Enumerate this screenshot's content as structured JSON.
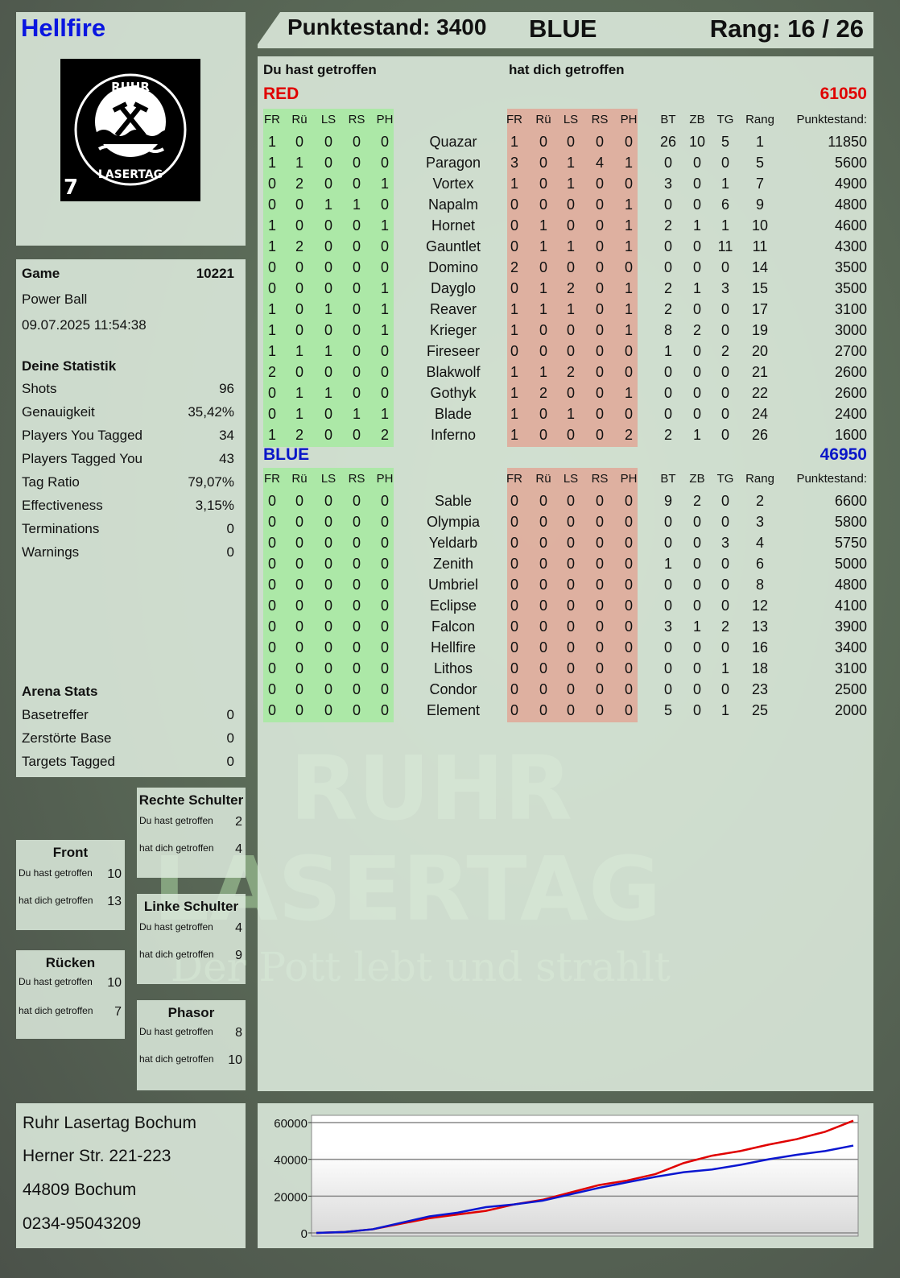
{
  "player_name": "Hellfire",
  "logo": {
    "text": "RUHR LASERTAG",
    "badge": "7"
  },
  "header": {
    "score_label": "Punktestand: 3400",
    "team": "BLUE",
    "rank_label": "Rang: 16 / 26"
  },
  "columns": {
    "you_hit": "Du hast getroffen",
    "hit_you": "hat dich getroffen",
    "hit_cols": [
      "FR",
      "Rü",
      "LS",
      "RS",
      "PH"
    ],
    "stat_cols": [
      "BT",
      "ZB",
      "TG",
      "Rang"
    ],
    "score_col": "Punktestand:"
  },
  "teams": [
    {
      "name": "RED",
      "score": "61050",
      "color": "#e00000",
      "rows": [
        [
          "Quazar",
          [
            1,
            0,
            0,
            0,
            0
          ],
          [
            1,
            0,
            0,
            0,
            0
          ],
          [
            26,
            10,
            5,
            1
          ],
          11850
        ],
        [
          "Paragon",
          [
            1,
            1,
            0,
            0,
            0
          ],
          [
            3,
            0,
            1,
            4,
            1
          ],
          [
            0,
            0,
            0,
            5
          ],
          5600
        ],
        [
          "Vortex",
          [
            0,
            2,
            0,
            0,
            1
          ],
          [
            1,
            0,
            1,
            0,
            0
          ],
          [
            3,
            0,
            1,
            7
          ],
          4900
        ],
        [
          "Napalm",
          [
            0,
            0,
            1,
            1,
            0
          ],
          [
            0,
            0,
            0,
            0,
            1
          ],
          [
            0,
            0,
            6,
            9
          ],
          4800
        ],
        [
          "Hornet",
          [
            1,
            0,
            0,
            0,
            1
          ],
          [
            0,
            1,
            0,
            0,
            1
          ],
          [
            2,
            1,
            1,
            10
          ],
          4600
        ],
        [
          "Gauntlet",
          [
            1,
            2,
            0,
            0,
            0
          ],
          [
            0,
            1,
            1,
            0,
            1
          ],
          [
            0,
            0,
            11,
            11
          ],
          4300
        ],
        [
          "Domino",
          [
            0,
            0,
            0,
            0,
            0
          ],
          [
            2,
            0,
            0,
            0,
            0
          ],
          [
            0,
            0,
            0,
            14
          ],
          3500
        ],
        [
          "Dayglo",
          [
            0,
            0,
            0,
            0,
            1
          ],
          [
            0,
            1,
            2,
            0,
            1
          ],
          [
            2,
            1,
            3,
            15
          ],
          3500
        ],
        [
          "Reaver",
          [
            1,
            0,
            1,
            0,
            1
          ],
          [
            1,
            1,
            1,
            0,
            1
          ],
          [
            2,
            0,
            0,
            17
          ],
          3100
        ],
        [
          "Krieger",
          [
            1,
            0,
            0,
            0,
            1
          ],
          [
            1,
            0,
            0,
            0,
            1
          ],
          [
            8,
            2,
            0,
            19
          ],
          3000
        ],
        [
          "Fireseer",
          [
            1,
            1,
            1,
            0,
            0
          ],
          [
            0,
            0,
            0,
            0,
            0
          ],
          [
            1,
            0,
            2,
            20
          ],
          2700
        ],
        [
          "Blakwolf",
          [
            2,
            0,
            0,
            0,
            0
          ],
          [
            1,
            1,
            2,
            0,
            0
          ],
          [
            0,
            0,
            0,
            21
          ],
          2600
        ],
        [
          "Gothyk",
          [
            0,
            1,
            1,
            0,
            0
          ],
          [
            1,
            2,
            0,
            0,
            1
          ],
          [
            0,
            0,
            0,
            22
          ],
          2600
        ],
        [
          "Blade",
          [
            0,
            1,
            0,
            1,
            1
          ],
          [
            1,
            0,
            1,
            0,
            0
          ],
          [
            0,
            0,
            0,
            24
          ],
          2400
        ],
        [
          "Inferno",
          [
            1,
            2,
            0,
            0,
            2
          ],
          [
            1,
            0,
            0,
            0,
            2
          ],
          [
            2,
            1,
            0,
            26
          ],
          1600
        ]
      ]
    },
    {
      "name": "BLUE",
      "score": "46950",
      "color": "#0a16c8",
      "rows": [
        [
          "Sable",
          [
            0,
            0,
            0,
            0,
            0
          ],
          [
            0,
            0,
            0,
            0,
            0
          ],
          [
            9,
            2,
            0,
            2
          ],
          6600
        ],
        [
          "Olympia",
          [
            0,
            0,
            0,
            0,
            0
          ],
          [
            0,
            0,
            0,
            0,
            0
          ],
          [
            0,
            0,
            0,
            3
          ],
          5800
        ],
        [
          "Yeldarb",
          [
            0,
            0,
            0,
            0,
            0
          ],
          [
            0,
            0,
            0,
            0,
            0
          ],
          [
            0,
            0,
            3,
            4
          ],
          5750
        ],
        [
          "Zenith",
          [
            0,
            0,
            0,
            0,
            0
          ],
          [
            0,
            0,
            0,
            0,
            0
          ],
          [
            1,
            0,
            0,
            6
          ],
          5000
        ],
        [
          "Umbriel",
          [
            0,
            0,
            0,
            0,
            0
          ],
          [
            0,
            0,
            0,
            0,
            0
          ],
          [
            0,
            0,
            0,
            8
          ],
          4800
        ],
        [
          "Eclipse",
          [
            0,
            0,
            0,
            0,
            0
          ],
          [
            0,
            0,
            0,
            0,
            0
          ],
          [
            0,
            0,
            0,
            12
          ],
          4100
        ],
        [
          "Falcon",
          [
            0,
            0,
            0,
            0,
            0
          ],
          [
            0,
            0,
            0,
            0,
            0
          ],
          [
            3,
            1,
            2,
            13
          ],
          3900
        ],
        [
          "Hellfire",
          [
            0,
            0,
            0,
            0,
            0
          ],
          [
            0,
            0,
            0,
            0,
            0
          ],
          [
            0,
            0,
            0,
            16
          ],
          3400
        ],
        [
          "Lithos",
          [
            0,
            0,
            0,
            0,
            0
          ],
          [
            0,
            0,
            0,
            0,
            0
          ],
          [
            0,
            0,
            1,
            18
          ],
          3100
        ],
        [
          "Condor",
          [
            0,
            0,
            0,
            0,
            0
          ],
          [
            0,
            0,
            0,
            0,
            0
          ],
          [
            0,
            0,
            0,
            23
          ],
          2500
        ],
        [
          "Element",
          [
            0,
            0,
            0,
            0,
            0
          ],
          [
            0,
            0,
            0,
            0,
            0
          ],
          [
            5,
            0,
            1,
            25
          ],
          2000
        ]
      ]
    }
  ],
  "game": {
    "label": "Game",
    "id": "10221",
    "mode": "Power Ball",
    "datetime": "09.07.2025 11:54:38"
  },
  "stats": {
    "title": "Deine Statistik",
    "items": [
      {
        "label": "Shots",
        "value": "96"
      },
      {
        "label": "Genauigkeit",
        "value": "35,42%"
      },
      {
        "label": "Players You Tagged",
        "value": "34"
      },
      {
        "label": "Players Tagged You",
        "value": "43"
      },
      {
        "label": "Tag Ratio",
        "value": "79,07%"
      },
      {
        "label": "Effectiveness",
        "value": "3,15%"
      },
      {
        "label": "Terminations",
        "value": "0"
      },
      {
        "label": "Warnings",
        "value": "0"
      }
    ]
  },
  "arena": {
    "title": "Arena Stats",
    "items": [
      {
        "label": "Basetreffer",
        "value": "0"
      },
      {
        "label": "Zerstörte Base",
        "value": "0"
      },
      {
        "label": "Targets Tagged",
        "value": "0"
      }
    ]
  },
  "hitzones": {
    "you_label": "Du hast getroffen",
    "them_label": "hat dich getroffen",
    "front": {
      "title": "Front",
      "you": "10",
      "them": "13"
    },
    "back": {
      "title": "Rücken",
      "you": "10",
      "them": "7"
    },
    "right_shoulder": {
      "title": "Rechte Schulter",
      "you": "2",
      "them": "4"
    },
    "left_shoulder": {
      "title": "Linke Schulter",
      "you": "4",
      "them": "9"
    },
    "phasor": {
      "title": "Phasor",
      "you": "8",
      "them": "10"
    }
  },
  "address": {
    "name": "Ruhr Lasertag Bochum",
    "street": "Herner Str. 221-223",
    "city": "44809 Bochum",
    "phone": "0234-95043209"
  },
  "watermark": {
    "line1": "RUHR",
    "line2": "LASERTAG",
    "tagline": "Der Pott lebt und strahlt"
  },
  "colors": {
    "you_hit_bg": "#a6eaa0",
    "hit_you_bg": "#e0a898"
  },
  "chart_data": {
    "type": "line",
    "ylim": [
      0,
      62000
    ],
    "yticks": [
      0,
      20000,
      40000,
      60000
    ],
    "grid": true,
    "series": [
      {
        "color": "#e00000",
        "values": [
          0,
          500,
          2000,
          5000,
          8000,
          10000,
          12000,
          15500,
          18000,
          22000,
          26000,
          28500,
          32000,
          38000,
          42000,
          44500,
          48000,
          51000,
          55000,
          61000
        ]
      },
      {
        "color": "#0a16d0",
        "values": [
          0,
          500,
          2000,
          5500,
          9000,
          11000,
          14000,
          15500,
          17500,
          21000,
          24500,
          27500,
          30500,
          33000,
          34500,
          37000,
          40000,
          42500,
          44500,
          47500
        ]
      }
    ]
  }
}
